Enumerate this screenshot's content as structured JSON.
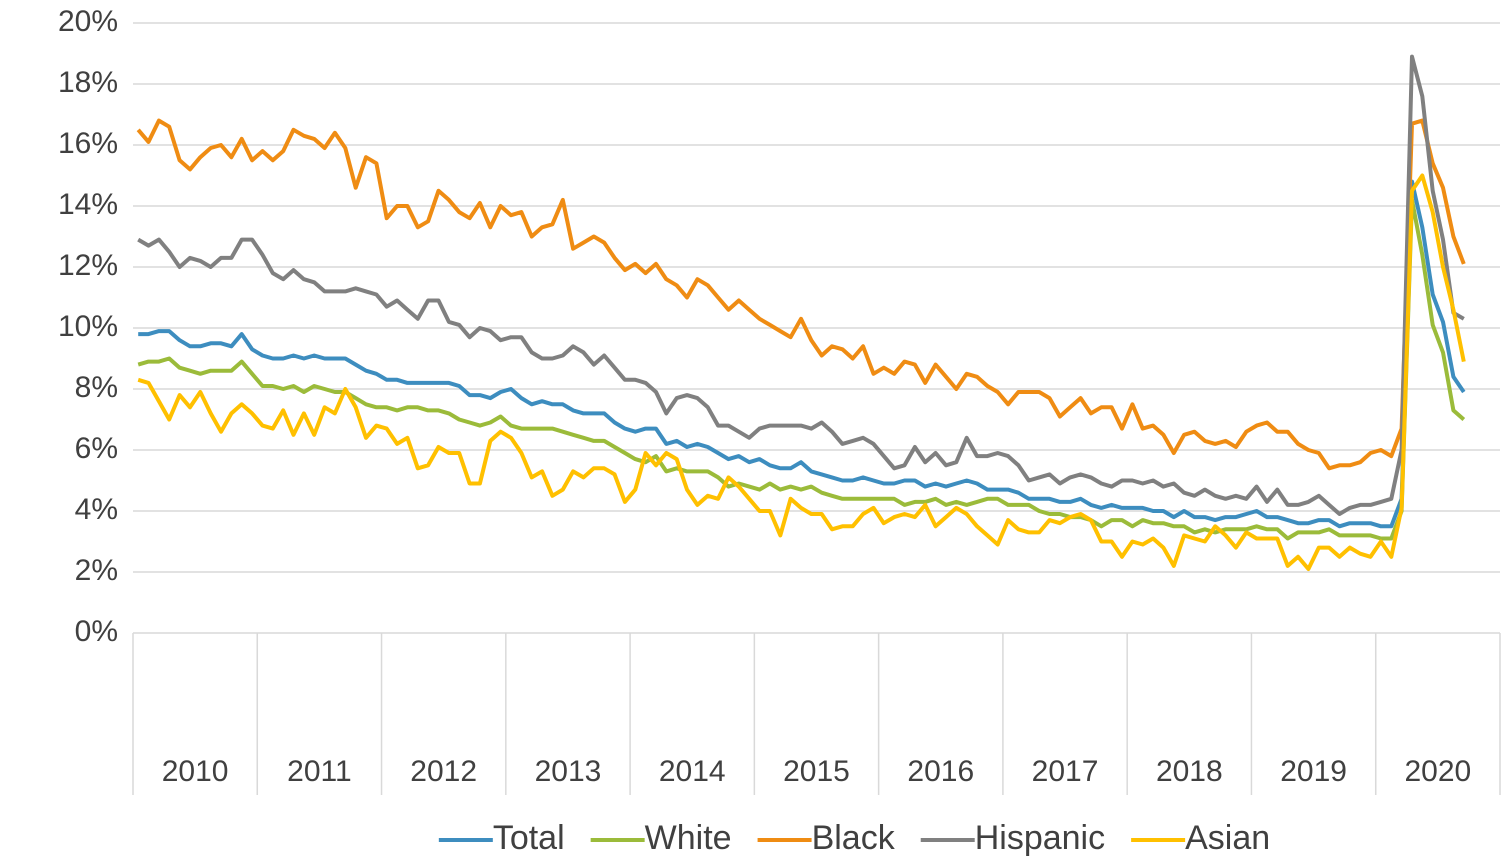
{
  "chart_data": {
    "type": "line",
    "categories": [
      null,
      null,
      null,
      null,
      null,
      null,
      "2010",
      null,
      null,
      null,
      null,
      null,
      null,
      null,
      null,
      null,
      null,
      null,
      "2011",
      null,
      null,
      null,
      null,
      null,
      null,
      null,
      null,
      null,
      null,
      null,
      "2012",
      null,
      null,
      null,
      null,
      null,
      null,
      null,
      null,
      null,
      null,
      null,
      "2013",
      null,
      null,
      null,
      null,
      null,
      null,
      null,
      null,
      null,
      null,
      null,
      "2014",
      null,
      null,
      null,
      null,
      null,
      null,
      null,
      null,
      null,
      null,
      null,
      "2015",
      null,
      null,
      null,
      null,
      null,
      null,
      null,
      null,
      null,
      null,
      null,
      "2016",
      null,
      null,
      null,
      null,
      null,
      null,
      null,
      null,
      null,
      null,
      null,
      "2017",
      null,
      null,
      null,
      null,
      null,
      null,
      null,
      null,
      null,
      null,
      null,
      "2018",
      null,
      null,
      null,
      null,
      null,
      null,
      null,
      null,
      null,
      null,
      null,
      "2019",
      null,
      null,
      null,
      null,
      null,
      null,
      null,
      null,
      null,
      null,
      null,
      "2020",
      null,
      null
    ],
    "series": [
      {
        "name": "Total",
        "color": "#3d8dbf",
        "values": [
          9.8,
          9.8,
          9.9,
          9.9,
          9.6,
          9.4,
          9.4,
          9.5,
          9.5,
          9.4,
          9.8,
          9.3,
          9.1,
          9.0,
          9.0,
          9.1,
          9.0,
          9.1,
          9.0,
          9.0,
          9.0,
          8.8,
          8.6,
          8.5,
          8.3,
          8.3,
          8.2,
          8.2,
          8.2,
          8.2,
          8.2,
          8.1,
          7.8,
          7.8,
          7.7,
          7.9,
          8.0,
          7.7,
          7.5,
          7.6,
          7.5,
          7.5,
          7.3,
          7.2,
          7.2,
          7.2,
          6.9,
          6.7,
          6.6,
          6.7,
          6.7,
          6.2,
          6.3,
          6.1,
          6.2,
          6.1,
          5.9,
          5.7,
          5.8,
          5.6,
          5.7,
          5.5,
          5.4,
          5.4,
          5.6,
          5.3,
          5.2,
          5.1,
          5.0,
          5.0,
          5.1,
          5.0,
          4.9,
          4.9,
          5.0,
          5.0,
          4.8,
          4.9,
          4.8,
          4.9,
          5.0,
          4.9,
          4.7,
          4.7,
          4.7,
          4.6,
          4.4,
          4.4,
          4.4,
          4.3,
          4.3,
          4.4,
          4.2,
          4.1,
          4.2,
          4.1,
          4.1,
          4.1,
          4.0,
          4.0,
          3.8,
          4.0,
          3.8,
          3.8,
          3.7,
          3.8,
          3.8,
          3.9,
          4.0,
          3.8,
          3.8,
          3.7,
          3.6,
          3.6,
          3.7,
          3.7,
          3.5,
          3.6,
          3.6,
          3.6,
          3.5,
          3.5,
          4.4,
          14.8,
          13.3,
          11.1,
          10.2,
          8.4,
          7.9
        ]
      },
      {
        "name": "White",
        "color": "#9bbb3a",
        "values": [
          8.8,
          8.9,
          8.9,
          9.0,
          8.7,
          8.6,
          8.5,
          8.6,
          8.6,
          8.6,
          8.9,
          8.5,
          8.1,
          8.1,
          8.0,
          8.1,
          7.9,
          8.1,
          8.0,
          7.9,
          7.9,
          7.7,
          7.5,
          7.4,
          7.4,
          7.3,
          7.4,
          7.4,
          7.3,
          7.3,
          7.2,
          7.0,
          6.9,
          6.8,
          6.9,
          7.1,
          6.8,
          6.7,
          6.7,
          6.7,
          6.7,
          6.6,
          6.5,
          6.4,
          6.3,
          6.3,
          6.1,
          5.9,
          5.7,
          5.6,
          5.8,
          5.3,
          5.4,
          5.3,
          5.3,
          5.3,
          5.1,
          4.8,
          4.9,
          4.8,
          4.7,
          4.9,
          4.7,
          4.8,
          4.7,
          4.8,
          4.6,
          4.5,
          4.4,
          4.4,
          4.4,
          4.4,
          4.4,
          4.4,
          4.2,
          4.3,
          4.3,
          4.4,
          4.2,
          4.3,
          4.2,
          4.3,
          4.4,
          4.4,
          4.2,
          4.2,
          4.2,
          4.0,
          3.9,
          3.9,
          3.8,
          3.8,
          3.7,
          3.5,
          3.7,
          3.7,
          3.5,
          3.7,
          3.6,
          3.6,
          3.5,
          3.5,
          3.3,
          3.4,
          3.3,
          3.4,
          3.4,
          3.4,
          3.5,
          3.4,
          3.4,
          3.1,
          3.3,
          3.3,
          3.3,
          3.4,
          3.2,
          3.2,
          3.2,
          3.2,
          3.1,
          3.1,
          4.0,
          14.2,
          12.4,
          10.1,
          9.2,
          7.3,
          7.0
        ]
      },
      {
        "name": "Black",
        "color": "#ef8c13",
        "values": [
          16.5,
          16.1,
          16.8,
          16.6,
          15.5,
          15.2,
          15.6,
          15.9,
          16.0,
          15.6,
          16.2,
          15.5,
          15.8,
          15.5,
          15.8,
          16.5,
          16.3,
          16.2,
          15.9,
          16.4,
          15.9,
          14.6,
          15.6,
          15.4,
          13.6,
          14.0,
          14.0,
          13.3,
          13.5,
          14.5,
          14.2,
          13.8,
          13.6,
          14.1,
          13.3,
          14.0,
          13.7,
          13.8,
          13.0,
          13.3,
          13.4,
          14.2,
          12.6,
          12.8,
          13.0,
          12.8,
          12.3,
          11.9,
          12.1,
          11.8,
          12.1,
          11.6,
          11.4,
          11.0,
          11.6,
          11.4,
          11.0,
          10.6,
          10.9,
          10.6,
          10.3,
          10.1,
          9.9,
          9.7,
          10.3,
          9.6,
          9.1,
          9.4,
          9.3,
          9.0,
          9.4,
          8.5,
          8.7,
          8.5,
          8.9,
          8.8,
          8.2,
          8.8,
          8.4,
          8.0,
          8.5,
          8.4,
          8.1,
          7.9,
          7.5,
          7.9,
          7.9,
          7.9,
          7.7,
          7.1,
          7.4,
          7.7,
          7.2,
          7.4,
          7.4,
          6.7,
          7.5,
          6.7,
          6.8,
          6.5,
          5.9,
          6.5,
          6.6,
          6.3,
          6.2,
          6.3,
          6.1,
          6.6,
          6.8,
          6.9,
          6.6,
          6.6,
          6.2,
          6.0,
          5.9,
          5.4,
          5.5,
          5.5,
          5.6,
          5.9,
          6.0,
          5.8,
          6.7,
          16.7,
          16.8,
          15.4,
          14.6,
          13.0,
          12.1
        ]
      },
      {
        "name": "Hispanic",
        "color": "#808080",
        "values": [
          12.9,
          12.7,
          12.9,
          12.5,
          12.0,
          12.3,
          12.2,
          12.0,
          12.3,
          12.3,
          12.9,
          12.9,
          12.4,
          11.8,
          11.6,
          11.9,
          11.6,
          11.5,
          11.2,
          11.2,
          11.2,
          11.3,
          11.2,
          11.1,
          10.7,
          10.9,
          10.6,
          10.3,
          10.9,
          10.9,
          10.2,
          10.1,
          9.7,
          10.0,
          9.9,
          9.6,
          9.7,
          9.7,
          9.2,
          9.0,
          9.0,
          9.1,
          9.4,
          9.2,
          8.8,
          9.1,
          8.7,
          8.3,
          8.3,
          8.2,
          7.9,
          7.2,
          7.7,
          7.8,
          7.7,
          7.4,
          6.8,
          6.8,
          6.6,
          6.4,
          6.7,
          6.8,
          6.8,
          6.8,
          6.8,
          6.7,
          6.9,
          6.6,
          6.2,
          6.3,
          6.4,
          6.2,
          5.8,
          5.4,
          5.5,
          6.1,
          5.6,
          5.9,
          5.5,
          5.6,
          6.4,
          5.8,
          5.8,
          5.9,
          5.8,
          5.5,
          5.0,
          5.1,
          5.2,
          4.9,
          5.1,
          5.2,
          5.1,
          4.9,
          4.8,
          5.0,
          5.0,
          4.9,
          5.0,
          4.8,
          4.9,
          4.6,
          4.5,
          4.7,
          4.5,
          4.4,
          4.5,
          4.4,
          4.8,
          4.3,
          4.7,
          4.2,
          4.2,
          4.3,
          4.5,
          4.2,
          3.9,
          4.1,
          4.2,
          4.2,
          4.3,
          4.4,
          6.0,
          18.9,
          17.6,
          14.5,
          12.9,
          10.5,
          10.3
        ]
      },
      {
        "name": "Asian",
        "color": "#ffc000",
        "values": [
          8.3,
          8.2,
          7.6,
          7.0,
          7.8,
          7.4,
          7.9,
          7.2,
          6.6,
          7.2,
          7.5,
          7.2,
          6.8,
          6.7,
          7.3,
          6.5,
          7.2,
          6.5,
          7.4,
          7.2,
          8.0,
          7.4,
          6.4,
          6.8,
          6.7,
          6.2,
          6.4,
          5.4,
          5.5,
          6.1,
          5.9,
          5.9,
          4.9,
          4.9,
          6.3,
          6.6,
          6.4,
          5.9,
          5.1,
          5.3,
          4.5,
          4.7,
          5.3,
          5.1,
          5.4,
          5.4,
          5.2,
          4.3,
          4.7,
          5.9,
          5.5,
          5.9,
          5.7,
          4.7,
          4.2,
          4.5,
          4.4,
          5.1,
          4.8,
          4.4,
          4.0,
          4.0,
          3.2,
          4.4,
          4.1,
          3.9,
          3.9,
          3.4,
          3.5,
          3.5,
          3.9,
          4.1,
          3.6,
          3.8,
          3.9,
          3.8,
          4.2,
          3.5,
          3.8,
          4.1,
          3.9,
          3.5,
          3.2,
          2.9,
          3.7,
          3.4,
          3.3,
          3.3,
          3.7,
          3.6,
          3.8,
          3.9,
          3.7,
          3.0,
          3.0,
          2.5,
          3.0,
          2.9,
          3.1,
          2.8,
          2.2,
          3.2,
          3.1,
          3.0,
          3.5,
          3.2,
          2.8,
          3.3,
          3.1,
          3.1,
          3.1,
          2.2,
          2.5,
          2.1,
          2.8,
          2.8,
          2.5,
          2.8,
          2.6,
          2.5,
          3.0,
          2.5,
          4.1,
          14.5,
          15.0,
          13.8,
          12.0,
          10.6,
          8.9
        ]
      }
    ],
    "ylim": [
      0,
      20
    ],
    "yticks": [
      {
        "value": 0,
        "label": "0%"
      },
      {
        "value": 2,
        "label": "2%"
      },
      {
        "value": 4,
        "label": "4%"
      },
      {
        "value": 6,
        "label": "6%"
      },
      {
        "value": 8,
        "label": "8%"
      },
      {
        "value": 10,
        "label": "10%"
      },
      {
        "value": 12,
        "label": "12%"
      },
      {
        "value": 14,
        "label": "14%"
      },
      {
        "value": 16,
        "label": "16%"
      },
      {
        "value": 18,
        "label": "18%"
      },
      {
        "value": 20,
        "label": "20%"
      }
    ],
    "grid": true,
    "legend": "bottom"
  }
}
